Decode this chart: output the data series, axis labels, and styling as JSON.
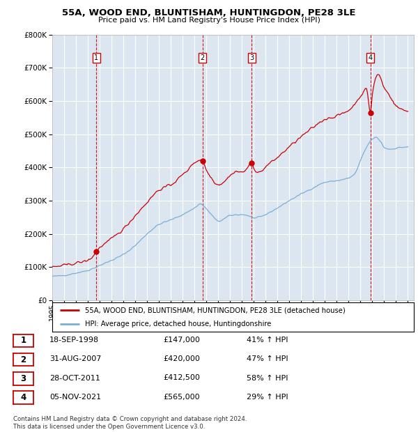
{
  "title": "55A, WOOD END, BLUNTISHAM, HUNTINGDON, PE28 3LE",
  "subtitle": "Price paid vs. HM Land Registry's House Price Index (HPI)",
  "property_label": "55A, WOOD END, BLUNTISHAM, HUNTINGDON, PE28 3LE (detached house)",
  "hpi_label": "HPI: Average price, detached house, Huntingdonshire",
  "footer": "Contains HM Land Registry data © Crown copyright and database right 2024.\nThis data is licensed under the Open Government Licence v3.0.",
  "transactions": [
    {
      "num": 1,
      "date": "18-SEP-1998",
      "price": "£147,000",
      "hpi_pct": "41% ↑ HPI",
      "year": 1998.72,
      "price_val": 147000
    },
    {
      "num": 2,
      "date": "31-AUG-2007",
      "price": "£420,000",
      "hpi_pct": "47% ↑ HPI",
      "year": 2007.67,
      "price_val": 420000
    },
    {
      "num": 3,
      "date": "28-OCT-2011",
      "price": "£412,500",
      "hpi_pct": "58% ↑ HPI",
      "year": 2011.83,
      "price_val": 412500
    },
    {
      "num": 4,
      "date": "05-NOV-2021",
      "price": "£565,000",
      "hpi_pct": "29% ↑ HPI",
      "year": 2021.85,
      "price_val": 565000
    }
  ],
  "property_color": "#cc0000",
  "hpi_color": "#7bafd4",
  "vline_color": "#cc0000",
  "background_color": "#dce6f1",
  "ylim": [
    0,
    800000
  ],
  "xlim_start": 1995.0,
  "xlim_end": 2025.5,
  "yticks": [
    0,
    100000,
    200000,
    300000,
    400000,
    500000,
    600000,
    700000,
    800000
  ],
  "xticks": [
    1995,
    1996,
    1997,
    1998,
    1999,
    2000,
    2001,
    2002,
    2003,
    2004,
    2005,
    2006,
    2007,
    2008,
    2009,
    2010,
    2011,
    2012,
    2013,
    2014,
    2015,
    2016,
    2017,
    2018,
    2019,
    2020,
    2021,
    2022,
    2023,
    2024,
    2025
  ]
}
